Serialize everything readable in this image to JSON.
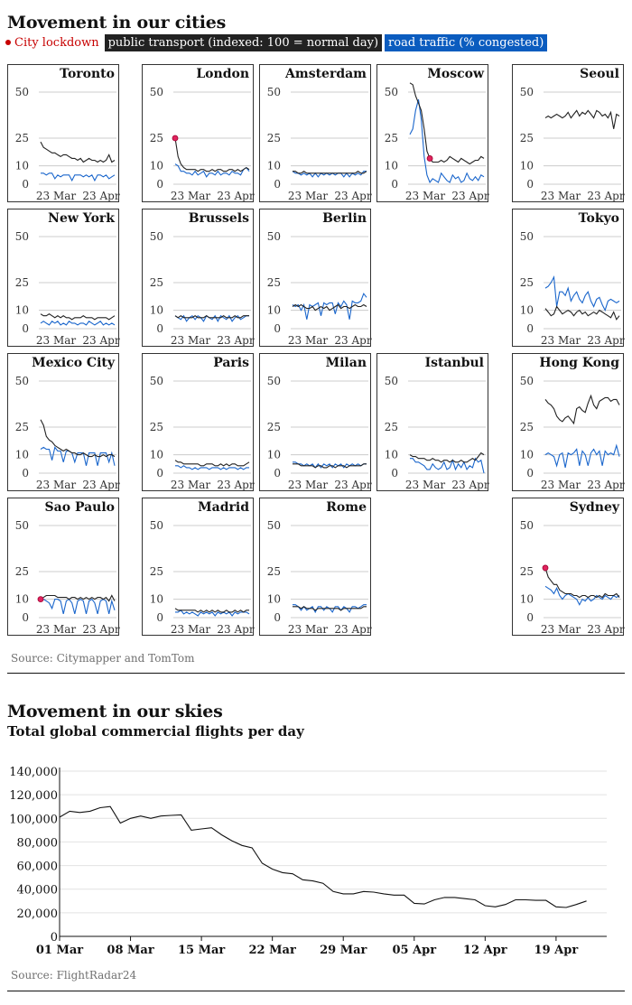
{
  "cities_section": {
    "title": "Movement in our cities",
    "legend": {
      "lockdown": "City lockdown",
      "public_transport": "public transport (indexed: 100 = normal day)",
      "road_traffic": "road traffic (% congested)"
    },
    "source": "Source: Citymapper and TomTom"
  },
  "flights_section": {
    "title": "Movement in our skies",
    "subtitle": "Total global commercial flights per day",
    "source": "Source: FlightRadar24"
  },
  "colors": {
    "public_transport": "#222222",
    "road_traffic": "#1a66cc",
    "lockdown": "#e0245e",
    "grid": "#cccccc"
  },
  "chart_data": [
    {
      "type": "line",
      "title": "Movement in our cities",
      "small_multiples": true,
      "yticks": [
        0,
        10,
        25,
        50
      ],
      "xtick_labels": [
        "23 Mar",
        "23 Apr"
      ],
      "ylim": [
        0,
        50
      ],
      "panels": [
        {
          "city": "Toronto",
          "pt": [
            23,
            20,
            19,
            18,
            17,
            17,
            16,
            15,
            16,
            16,
            15,
            14,
            14,
            13,
            14,
            12,
            13,
            14,
            13,
            13,
            12,
            13,
            12,
            13,
            16,
            12,
            13
          ],
          "rt": [
            6,
            6,
            5,
            6,
            6,
            3,
            5,
            4,
            5,
            5,
            5,
            2,
            5,
            5,
            5,
            4,
            5,
            4,
            5,
            2,
            5,
            5,
            4,
            5,
            3,
            4,
            5
          ]
        },
        {
          "city": "London",
          "pt": [
            25,
            15,
            11,
            9,
            8,
            8,
            8,
            8,
            7,
            8,
            8,
            7,
            7,
            8,
            7,
            8,
            8,
            7,
            7,
            8,
            8,
            7,
            8,
            7,
            8,
            9,
            8
          ],
          "rt": [
            11,
            10,
            7,
            7,
            6,
            6,
            5,
            7,
            5,
            6,
            7,
            4,
            6,
            6,
            5,
            7,
            5,
            6,
            6,
            5,
            7,
            6,
            6,
            5,
            8,
            9,
            7
          ],
          "lockdown": 0
        },
        {
          "city": "Amsterdam",
          "pt": [
            7,
            7,
            6,
            6,
            7,
            6,
            6,
            6,
            6,
            6,
            6,
            6,
            6,
            6,
            6,
            6,
            6,
            6,
            6,
            6,
            6,
            6,
            6,
            7,
            6,
            6,
            7
          ],
          "rt": [
            7,
            6,
            6,
            5,
            6,
            5,
            6,
            4,
            6,
            4,
            6,
            5,
            6,
            5,
            6,
            5,
            6,
            6,
            4,
            6,
            4,
            6,
            5,
            6,
            5,
            7,
            7
          ]
        },
        {
          "city": "Moscow",
          "pt": [
            55,
            54,
            48,
            44,
            40,
            30,
            18,
            14,
            12,
            12,
            12,
            13,
            12,
            13,
            15,
            14,
            13,
            12,
            14,
            13,
            12,
            11,
            12,
            13,
            13,
            15,
            14
          ],
          "rt": [
            27,
            30,
            40,
            46,
            35,
            15,
            5,
            1,
            3,
            2,
            1,
            6,
            4,
            2,
            1,
            5,
            3,
            4,
            1,
            2,
            6,
            3,
            2,
            4,
            2,
            5,
            4
          ],
          "lockdown": 7
        },
        {
          "city": "Seoul",
          "pt": [
            36,
            37,
            36,
            37,
            38,
            37,
            36,
            37,
            39,
            36,
            38,
            40,
            37,
            39,
            38,
            40,
            38,
            36,
            40,
            39,
            37,
            38,
            36,
            39,
            30,
            38,
            37
          ],
          "rt": []
        },
        {
          "city": "New York",
          "pt": [
            8,
            7,
            7,
            8,
            7,
            6,
            7,
            6,
            7,
            6,
            6,
            5,
            6,
            6,
            6,
            7,
            6,
            6,
            6,
            5,
            6,
            6,
            6,
            6,
            5,
            6,
            7
          ],
          "rt": [
            3,
            4,
            3,
            2,
            4,
            3,
            4,
            2,
            3,
            2,
            4,
            3,
            3,
            2,
            3,
            3,
            2,
            4,
            3,
            2,
            3,
            4,
            2,
            3,
            2,
            3,
            2
          ]
        },
        {
          "city": "Brussels",
          "pt": [
            7,
            6,
            7,
            6,
            6,
            6,
            6,
            7,
            6,
            6,
            6,
            7,
            6,
            6,
            6,
            6,
            6,
            7,
            6,
            6,
            6,
            7,
            6,
            6,
            7,
            7,
            7
          ],
          "rt": [
            7,
            6,
            5,
            7,
            4,
            6,
            7,
            5,
            7,
            6,
            4,
            7,
            6,
            5,
            7,
            4,
            7,
            6,
            5,
            7,
            4,
            6,
            7,
            5,
            6,
            7,
            7
          ]
        },
        {
          "city": "Berlin",
          "pt": [
            12,
            13,
            12,
            13,
            12,
            11,
            11,
            12,
            10,
            11,
            12,
            11,
            12,
            10,
            11,
            12,
            13,
            11,
            12,
            12,
            11,
            12,
            13,
            12,
            12,
            13,
            12
          ],
          "rt": [
            13,
            12,
            13,
            10,
            13,
            5,
            13,
            12,
            13,
            14,
            7,
            14,
            13,
            14,
            14,
            8,
            14,
            12,
            15,
            13,
            5,
            15,
            14,
            14,
            15,
            19,
            17
          ]
        },
        {
          "city": "Tokyo",
          "pt": [
            11,
            9,
            7,
            8,
            12,
            10,
            8,
            9,
            10,
            9,
            7,
            9,
            10,
            8,
            9,
            7,
            8,
            9,
            8,
            10,
            9,
            8,
            7,
            6,
            9,
            5,
            7
          ],
          "rt": [
            22,
            23,
            25,
            28,
            12,
            20,
            20,
            18,
            22,
            15,
            18,
            20,
            16,
            14,
            18,
            20,
            15,
            12,
            16,
            17,
            13,
            10,
            15,
            16,
            15,
            14,
            15
          ]
        },
        {
          "city": "Mexico City",
          "pt": [
            29,
            26,
            20,
            18,
            17,
            15,
            14,
            13,
            12,
            13,
            12,
            11,
            11,
            10,
            10,
            11,
            10,
            9,
            9,
            10,
            9,
            9,
            10,
            9,
            10,
            10,
            9
          ],
          "rt": [
            13,
            14,
            13,
            13,
            7,
            14,
            12,
            12,
            6,
            12,
            12,
            11,
            6,
            11,
            11,
            11,
            4,
            11,
            11,
            11,
            4,
            11,
            11,
            11,
            6,
            11,
            4
          ]
        },
        {
          "city": "Paris",
          "pt": [
            7,
            6,
            6,
            5,
            5,
            5,
            5,
            5,
            5,
            4,
            4,
            5,
            5,
            5,
            4,
            4,
            5,
            4,
            5,
            4,
            5,
            5,
            4,
            4,
            4,
            5,
            6
          ],
          "rt": [
            4,
            4,
            3,
            4,
            3,
            3,
            2,
            3,
            2,
            3,
            3,
            3,
            2,
            3,
            3,
            3,
            2,
            3,
            2,
            3,
            3,
            3,
            2,
            3,
            2,
            3,
            3
          ]
        },
        {
          "city": "Milan",
          "pt": [
            5,
            5,
            5,
            4,
            4,
            4,
            4,
            4,
            3,
            4,
            4,
            3,
            3,
            4,
            4,
            3,
            4,
            4,
            4,
            3,
            4,
            4,
            4,
            4,
            4,
            5,
            5
          ],
          "rt": [
            6,
            6,
            5,
            5,
            4,
            5,
            4,
            5,
            3,
            5,
            3,
            5,
            4,
            5,
            3,
            5,
            4,
            5,
            3,
            5,
            4,
            5,
            4,
            5,
            4,
            5,
            5
          ]
        },
        {
          "city": "Istanbul",
          "pt": [
            10,
            9,
            9,
            8,
            8,
            8,
            7,
            7,
            8,
            7,
            7,
            6,
            7,
            7,
            6,
            7,
            6,
            6,
            7,
            6,
            6,
            7,
            8,
            7,
            9,
            11,
            10
          ],
          "rt": [
            8,
            8,
            6,
            6,
            5,
            4,
            2,
            2,
            5,
            3,
            2,
            3,
            6,
            2,
            3,
            7,
            2,
            5,
            3,
            6,
            2,
            4,
            3,
            8,
            6,
            7,
            0
          ]
        },
        {
          "city": "Hong Kong",
          "pt": [
            40,
            38,
            37,
            35,
            31,
            29,
            28,
            30,
            31,
            29,
            27,
            35,
            36,
            34,
            33,
            38,
            42,
            37,
            35,
            39,
            40,
            41,
            41,
            39,
            40,
            40,
            37
          ],
          "rt": [
            10,
            11,
            10,
            9,
            4,
            10,
            11,
            3,
            11,
            10,
            11,
            13,
            4,
            12,
            10,
            4,
            11,
            13,
            10,
            12,
            4,
            12,
            10,
            11,
            10,
            15,
            9
          ]
        },
        {
          "city": "Sao Paulo",
          "pt": [
            10,
            11,
            12,
            12,
            12,
            12,
            11,
            11,
            11,
            11,
            10,
            11,
            11,
            10,
            11,
            10,
            11,
            10,
            11,
            10,
            11,
            11,
            10,
            11,
            9,
            12,
            9
          ],
          "rt": [
            10,
            10,
            9,
            8,
            5,
            10,
            10,
            9,
            2,
            9,
            10,
            8,
            2,
            9,
            10,
            9,
            2,
            9,
            10,
            8,
            2,
            9,
            10,
            9,
            2,
            9,
            4
          ],
          "lockdown": 0
        },
        {
          "city": "Madrid",
          "pt": [
            5,
            4,
            4,
            4,
            4,
            4,
            4,
            4,
            3,
            4,
            3,
            4,
            3,
            4,
            3,
            4,
            3,
            3,
            4,
            3,
            3,
            4,
            3,
            4,
            3,
            4,
            4
          ],
          "rt": [
            3,
            3,
            4,
            2,
            3,
            2,
            3,
            2,
            1,
            3,
            2,
            3,
            2,
            3,
            1,
            3,
            2,
            3,
            2,
            3,
            1,
            3,
            2,
            3,
            3,
            3,
            2
          ]
        },
        {
          "city": "Rome",
          "pt": [
            6,
            6,
            6,
            5,
            6,
            5,
            5,
            5,
            4,
            5,
            5,
            5,
            5,
            5,
            5,
            5,
            5,
            4,
            5,
            5,
            5,
            5,
            5,
            5,
            5,
            6,
            6
          ],
          "rt": [
            7,
            7,
            6,
            4,
            6,
            4,
            5,
            6,
            3,
            6,
            6,
            4,
            6,
            5,
            3,
            6,
            6,
            4,
            6,
            5,
            3,
            6,
            6,
            5,
            6,
            7,
            7
          ]
        },
        {
          "city": "Sydney",
          "pt": [
            27,
            22,
            20,
            18,
            18,
            15,
            14,
            13,
            13,
            13,
            12,
            12,
            11,
            12,
            12,
            11,
            12,
            12,
            11,
            12,
            11,
            13,
            12,
            12,
            12,
            13,
            11
          ],
          "rt": [
            17,
            16,
            15,
            13,
            16,
            12,
            10,
            12,
            13,
            12,
            11,
            10,
            7,
            10,
            9,
            11,
            9,
            10,
            12,
            11,
            10,
            12,
            11,
            10,
            12,
            11,
            12
          ],
          "lockdown": 0
        }
      ]
    },
    {
      "type": "line",
      "title": "Total global commercial flights per day",
      "xtick_labels": [
        "01 Mar",
        "08 Mar",
        "15 Mar",
        "22 Mar",
        "29 Mar",
        "05 Apr",
        "12 Apr",
        "19 Apr"
      ],
      "ytick_labels": [
        "0",
        "20,000",
        "40,000",
        "60,000",
        "80,000",
        "100,000",
        "120,000",
        "140,000"
      ],
      "yticks": [
        0,
        20000,
        40000,
        60000,
        80000,
        100000,
        120000,
        140000
      ],
      "ylim": [
        0,
        140000
      ],
      "xlim": [
        0,
        54
      ],
      "x": [
        0,
        1,
        2,
        3,
        4,
        5,
        6,
        7,
        8,
        9,
        10,
        11,
        12,
        13,
        14,
        15,
        16,
        17,
        18,
        19,
        20,
        21,
        22,
        23,
        24,
        25,
        26,
        27,
        28,
        29,
        30,
        31,
        32,
        33,
        34,
        35,
        36,
        37,
        38,
        39,
        40,
        41,
        42,
        43,
        44,
        45,
        46,
        47,
        48,
        49,
        50,
        51,
        52
      ],
      "values": [
        101000,
        106000,
        105000,
        106000,
        109000,
        110000,
        96000,
        100000,
        102000,
        100000,
        102000,
        102500,
        103000,
        90000,
        91000,
        92000,
        86000,
        81000,
        77000,
        75000,
        62000,
        57000,
        54000,
        53000,
        48000,
        47000,
        45000,
        38000,
        36000,
        36000,
        38000,
        37500,
        36000,
        35000,
        35000,
        28000,
        27500,
        31000,
        33000,
        33000,
        32000,
        31000,
        26000,
        25000,
        27000,
        31000,
        31000,
        30500,
        30500,
        25000,
        24500,
        27000,
        30000
      ]
    }
  ]
}
